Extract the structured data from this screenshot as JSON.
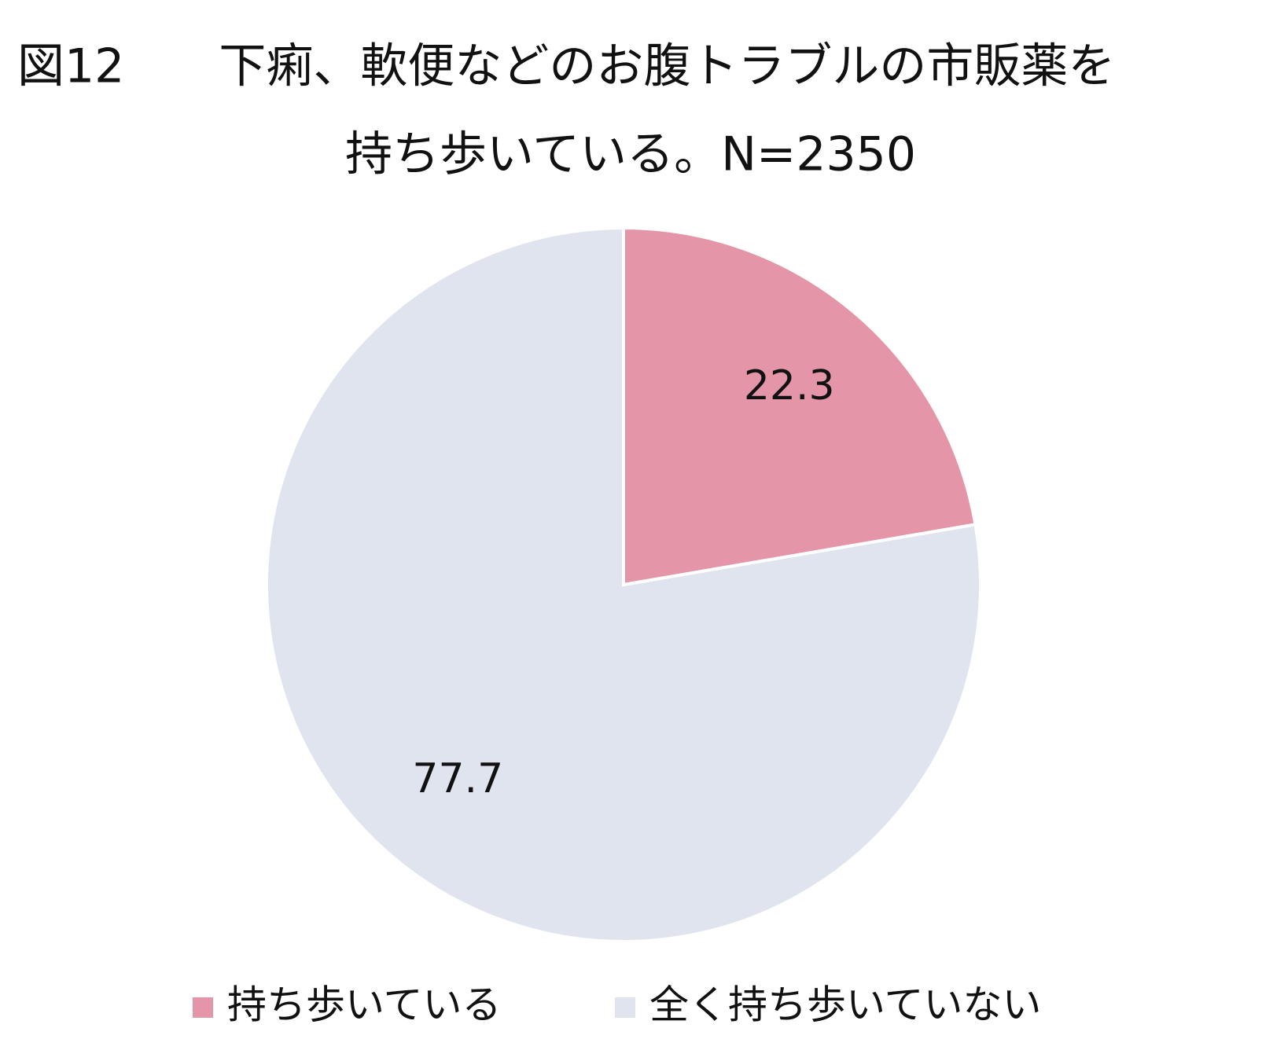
{
  "chart_data": {
    "type": "pie",
    "title": [
      "図12　　下痢、軟便などのお腹トラブルの市販薬を",
      "持ち歩いている。N=2350"
    ],
    "categories": [
      "持ち歩いている",
      "全く持ち歩いていない"
    ],
    "values": [
      22.3,
      77.7
    ],
    "colors": [
      "#e595a8",
      "#dfe4ee"
    ],
    "legend": "bottom"
  }
}
